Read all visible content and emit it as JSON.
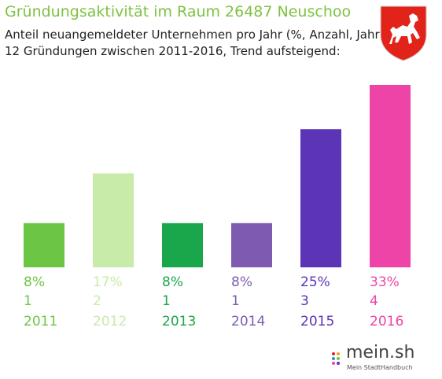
{
  "header": {
    "title": "Gründungsaktivität im Raum 26487 Neuschoo",
    "subtitle_line1": "Anteil neuangemeldeter Unternehmen pro Jahr (%, Anzahl, Jahr)",
    "subtitle_line2": "12 Gründungen zwischen 2011-2016, Trend aufsteigend:"
  },
  "crest": {
    "icon": "niedersachsen-horse-crest-icon",
    "color": "#e2231a"
  },
  "logo": {
    "name": "mein.sh",
    "tagline": "Mein StadtHandbuch"
  },
  "chart_data": {
    "type": "bar",
    "categories": [
      "2011",
      "2012",
      "2013",
      "2014",
      "2015",
      "2016"
    ],
    "percent_labels": [
      "8%",
      "17%",
      "8%",
      "8%",
      "25%",
      "33%"
    ],
    "count_labels": [
      "1",
      "2",
      "1",
      "1",
      "3",
      "4"
    ],
    "values": [
      8,
      17,
      8,
      8,
      25,
      33
    ],
    "colors": [
      "#6cc644",
      "#c8ebaa",
      "#1aa64a",
      "#7e5bb0",
      "#5b35b5",
      "#ee44a8"
    ],
    "ylim": [
      0,
      33
    ],
    "grid": false,
    "legend": "none"
  }
}
